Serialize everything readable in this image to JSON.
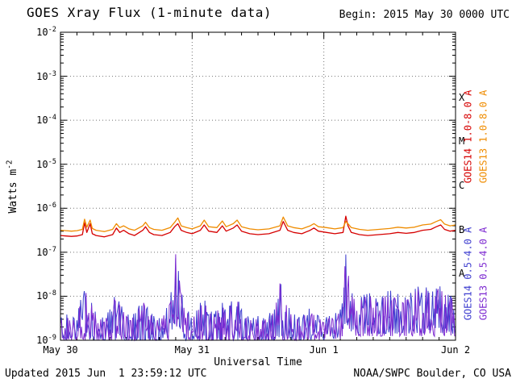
{
  "footer": {
    "updated": "Updated 2015 Jun  1 23:59:12 UTC",
    "source": "NOAA/SWPC Boulder, CO USA"
  },
  "chart_data": {
    "type": "line",
    "title": "GOES Xray Flux (1-minute data)",
    "begin_label": "Begin: 2015 May 30 0000 UTC",
    "xlabel": "Universal Time",
    "ylabel": {
      "text": "Watts m",
      "sup": "-2"
    },
    "x_range_hours": [
      0,
      72
    ],
    "y_log_range": [
      -9,
      -2
    ],
    "grid": "dotted",
    "y_tick_exponents": [
      -2,
      -3,
      -4,
      -5,
      -6,
      -7,
      -8,
      -9
    ],
    "x_ticks": [
      {
        "t": 0,
        "label": "May 30"
      },
      {
        "t": 24,
        "label": "May 31"
      },
      {
        "t": 48,
        "label": "Jun 1"
      },
      {
        "t": 72,
        "label": "Jun 2"
      }
    ],
    "flare_classes": [
      {
        "label": "X",
        "log_mid": -3.5
      },
      {
        "label": "M",
        "log_mid": -4.5
      },
      {
        "label": "C",
        "log_mid": -5.5
      },
      {
        "label": "B",
        "log_mid": -6.5
      },
      {
        "label": "A",
        "log_mid": -7.5
      }
    ],
    "series": [
      {
        "name": "GOES14 1.0-8.0 A",
        "color": "#d60000",
        "kind": "line",
        "points_t": [
          0,
          1,
          2,
          3,
          4,
          4.4,
          4.8,
          5.4,
          5.8,
          6.5,
          8,
          9.5,
          10.2,
          10.8,
          11.5,
          12.5,
          13.5,
          15,
          15.5,
          16.2,
          17,
          18.5,
          20,
          20.8,
          21.4,
          22,
          23,
          24,
          25.5,
          26.2,
          27,
          28.5,
          29.5,
          30.2,
          31.5,
          32.2,
          33,
          34.5,
          36,
          38,
          40,
          40.6,
          41.4,
          42.5,
          44,
          45.5,
          46.2,
          47,
          48.5,
          50,
          51.5,
          52,
          52.4,
          53,
          54.5,
          56,
          58,
          60,
          61.5,
          63,
          64.5,
          66,
          67.5,
          68.5,
          69.3,
          70,
          71,
          72
        ],
        "points_log": [
          -6.62,
          -6.63,
          -6.64,
          -6.63,
          -6.6,
          -6.33,
          -6.55,
          -6.35,
          -6.58,
          -6.62,
          -6.65,
          -6.6,
          -6.45,
          -6.55,
          -6.5,
          -6.58,
          -6.62,
          -6.5,
          -6.42,
          -6.55,
          -6.6,
          -6.62,
          -6.55,
          -6.42,
          -6.35,
          -6.5,
          -6.55,
          -6.58,
          -6.5,
          -6.38,
          -6.52,
          -6.55,
          -6.4,
          -6.52,
          -6.45,
          -6.38,
          -6.52,
          -6.58,
          -6.6,
          -6.58,
          -6.5,
          -6.3,
          -6.5,
          -6.55,
          -6.58,
          -6.5,
          -6.45,
          -6.52,
          -6.55,
          -6.58,
          -6.55,
          -6.18,
          -6.4,
          -6.55,
          -6.6,
          -6.62,
          -6.6,
          -6.58,
          -6.55,
          -6.57,
          -6.55,
          -6.5,
          -6.48,
          -6.42,
          -6.38,
          -6.48,
          -6.52,
          -6.5
        ]
      },
      {
        "name": "GOES13 1.0-8.0 A",
        "color": "#ef8c00",
        "kind": "line",
        "points_t": [
          0,
          1,
          2,
          3,
          4,
          4.4,
          4.8,
          5.4,
          5.8,
          6.5,
          8,
          9.5,
          10.2,
          10.8,
          11.5,
          12.5,
          13.5,
          15,
          15.5,
          16.2,
          17,
          18.5,
          20,
          20.8,
          21.4,
          22,
          23,
          24,
          25.5,
          26.2,
          27,
          28.5,
          29.5,
          30.2,
          31.5,
          32.2,
          33,
          34.5,
          36,
          38,
          40,
          40.6,
          41.4,
          42.5,
          44,
          45.5,
          46.2,
          47,
          48.5,
          50,
          51.5,
          52,
          52.4,
          53,
          54.5,
          56,
          58,
          60,
          61.5,
          63,
          64.5,
          66,
          67.5,
          68.5,
          69.3,
          70,
          71,
          72
        ],
        "points_log": [
          -6.5,
          -6.51,
          -6.52,
          -6.51,
          -6.48,
          -6.25,
          -6.43,
          -6.27,
          -6.46,
          -6.5,
          -6.53,
          -6.48,
          -6.35,
          -6.44,
          -6.4,
          -6.47,
          -6.5,
          -6.4,
          -6.32,
          -6.44,
          -6.48,
          -6.5,
          -6.44,
          -6.32,
          -6.22,
          -6.4,
          -6.44,
          -6.47,
          -6.4,
          -6.27,
          -6.42,
          -6.44,
          -6.29,
          -6.42,
          -6.35,
          -6.27,
          -6.42,
          -6.47,
          -6.49,
          -6.47,
          -6.4,
          -6.2,
          -6.4,
          -6.44,
          -6.47,
          -6.4,
          -6.35,
          -6.42,
          -6.44,
          -6.47,
          -6.44,
          -6.3,
          -6.35,
          -6.44,
          -6.48,
          -6.5,
          -6.48,
          -6.46,
          -6.43,
          -6.45,
          -6.43,
          -6.38,
          -6.36,
          -6.3,
          -6.26,
          -6.36,
          -6.4,
          -6.38
        ]
      },
      {
        "name": "GOES14 0.5-4.0 A",
        "color": "#3d3dcf",
        "kind": "noise",
        "seed": 1,
        "offset_log": 0
      },
      {
        "name": "GOES13 0.5-4.0 A",
        "color": "#7d2ad1",
        "kind": "noise",
        "seed": 2,
        "offset_log": -0.06
      }
    ],
    "short_noise_envelope": {
      "t_step_hours": 1,
      "min_log": [
        -9,
        -9,
        -9,
        -9,
        -9,
        -9,
        -9,
        -9,
        -9,
        -9,
        -9,
        -9,
        -9,
        -9,
        -9,
        -9,
        -9,
        -9,
        -9,
        -9,
        -9,
        -8.6,
        -9,
        -9,
        -9,
        -9,
        -9,
        -9,
        -9,
        -9,
        -9,
        -9,
        -9,
        -9,
        -9,
        -9,
        -9,
        -9,
        -9,
        -9,
        -9,
        -9,
        -9,
        -9,
        -9,
        -9,
        -9,
        -9,
        -9,
        -9,
        -9,
        -9,
        -8.6,
        -8.95,
        -8.85,
        -8.85,
        -8.85,
        -8.85,
        -8.85,
        -8.85,
        -8.85,
        -8.85,
        -8.85,
        -8.85,
        -8.85,
        -8.85,
        -8.85,
        -8.85,
        -8.85,
        -8.85,
        -8.85,
        -8.85,
        -8.85
      ],
      "max_log": [
        -8.5,
        -8.4,
        -8.5,
        -8.45,
        -7.9,
        -7.85,
        -8.3,
        -8.45,
        -8.5,
        -8.3,
        -7.95,
        -8.2,
        -8.4,
        -8.45,
        -8.3,
        -8.05,
        -8.3,
        -8.45,
        -8.5,
        -8.35,
        -8.1,
        -6.95,
        -7.9,
        -8.3,
        -8.45,
        -8.3,
        -8.0,
        -8.3,
        -8.4,
        -8.0,
        -8.3,
        -8.15,
        -7.95,
        -8.3,
        -8.45,
        -8.5,
        -8.45,
        -8.5,
        -8.4,
        -8.3,
        -7.65,
        -8.1,
        -8.35,
        -8.45,
        -8.5,
        -8.25,
        -8.35,
        -8.45,
        -8.5,
        -8.45,
        -8.4,
        -8.3,
        -7.05,
        -7.9,
        -8.1,
        -8.0,
        -7.9,
        -8.0,
        -8.1,
        -7.95,
        -7.85,
        -8.0,
        -7.9,
        -8.05,
        -7.9,
        -7.8,
        -7.7,
        -7.85,
        -7.9,
        -7.75,
        -7.9,
        -8.0,
        -7.95
      ]
    }
  }
}
